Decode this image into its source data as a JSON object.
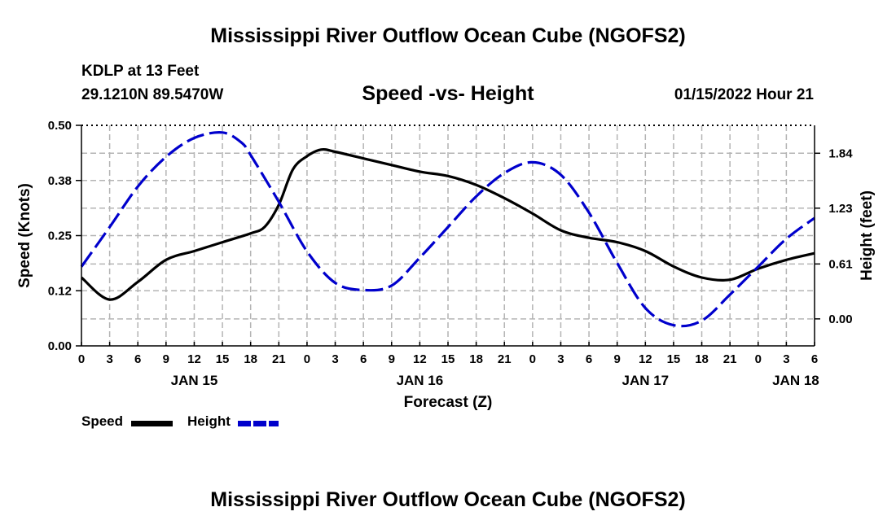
{
  "page": {
    "title": "Mississippi River Outflow Ocean Cube (NGOFS2)",
    "station": "KDLP at 13 Feet",
    "coords": "29.1210N  89.5470W",
    "subtitle": "Speed -vs- Height",
    "datetime": "01/15/2022 Hour 21",
    "footer_title": "Mississippi River Outflow Ocean Cube (NGOFS2)"
  },
  "colors": {
    "speed": "#000000",
    "height": "#0000cc",
    "grid": "#b4b4b4"
  },
  "chart_data": {
    "type": "line",
    "title": "Speed -vs- Height",
    "xlabel": "Forecast (Z)",
    "ylabel": "Speed (Knots)",
    "y2label": "Height (feet)",
    "x_unit": "hours from JAN 15 00Z",
    "xlim": [
      0,
      78
    ],
    "x_ticks": [
      0,
      3,
      6,
      9,
      12,
      15,
      18,
      21,
      24,
      27,
      30,
      33,
      36,
      39,
      42,
      45,
      48,
      51,
      54,
      57,
      60,
      63,
      66,
      69,
      72,
      75,
      78
    ],
    "x_tick_labels": [
      "0",
      "3",
      "6",
      "9",
      "12",
      "15",
      "18",
      "21",
      "0",
      "3",
      "6",
      "9",
      "12",
      "15",
      "18",
      "21",
      "0",
      "3",
      "6",
      "9",
      "12",
      "15",
      "18",
      "21",
      "0",
      "3",
      "6"
    ],
    "date_labels": [
      {
        "x": 12,
        "label": "JAN 15"
      },
      {
        "x": 36,
        "label": "JAN 16"
      },
      {
        "x": 60,
        "label": "JAN 17"
      },
      {
        "x": 76,
        "label": "JAN 18"
      }
    ],
    "ylim": [
      0,
      0.5
    ],
    "y_ticks": [
      0,
      0.125,
      0.25,
      0.375,
      0.5
    ],
    "y_tick_labels": [
      "0.00",
      "0.12",
      "0.25",
      "0.38",
      "0.50"
    ],
    "y2lim": [
      -0.3,
      2.15
    ],
    "y2_ticks": [
      0.0,
      0.61,
      1.23,
      1.84
    ],
    "y2_tick_labels": [
      "0.00",
      "0.61",
      "1.23",
      "1.84"
    ],
    "legend": [
      {
        "name": "Speed",
        "style": "solid"
      },
      {
        "name": "Height",
        "style": "dashed"
      }
    ],
    "series": [
      {
        "name": "Speed",
        "axis": "left",
        "style": "solid",
        "x": [
          0,
          3,
          6,
          9,
          12,
          15,
          18,
          19.5,
          21,
          22.5,
          24,
          25.5,
          27,
          30,
          33,
          36,
          39,
          42,
          45,
          48,
          51,
          54,
          57,
          60,
          63,
          66,
          69,
          72,
          75,
          78
        ],
        "values": [
          0.155,
          0.105,
          0.145,
          0.195,
          0.215,
          0.235,
          0.255,
          0.27,
          0.32,
          0.4,
          0.43,
          0.445,
          0.44,
          0.425,
          0.41,
          0.395,
          0.385,
          0.365,
          0.335,
          0.3,
          0.262,
          0.245,
          0.235,
          0.215,
          0.18,
          0.155,
          0.15,
          0.175,
          0.195,
          0.21
        ]
      },
      {
        "name": "Height",
        "axis": "right",
        "style": "dashed",
        "x": [
          0,
          3,
          6,
          9,
          12,
          15,
          17,
          18,
          21,
          24,
          27,
          30,
          33,
          36,
          39,
          42,
          45,
          48,
          51,
          54,
          57,
          60,
          63,
          66,
          69,
          72,
          75,
          78
        ],
        "values": [
          0.58,
          1.02,
          1.47,
          1.8,
          2.01,
          2.07,
          1.96,
          1.82,
          1.3,
          0.75,
          0.4,
          0.32,
          0.37,
          0.68,
          1.02,
          1.36,
          1.62,
          1.74,
          1.6,
          1.18,
          0.62,
          0.12,
          -0.07,
          -0.02,
          0.27,
          0.58,
          0.89,
          1.12
        ]
      }
    ]
  }
}
